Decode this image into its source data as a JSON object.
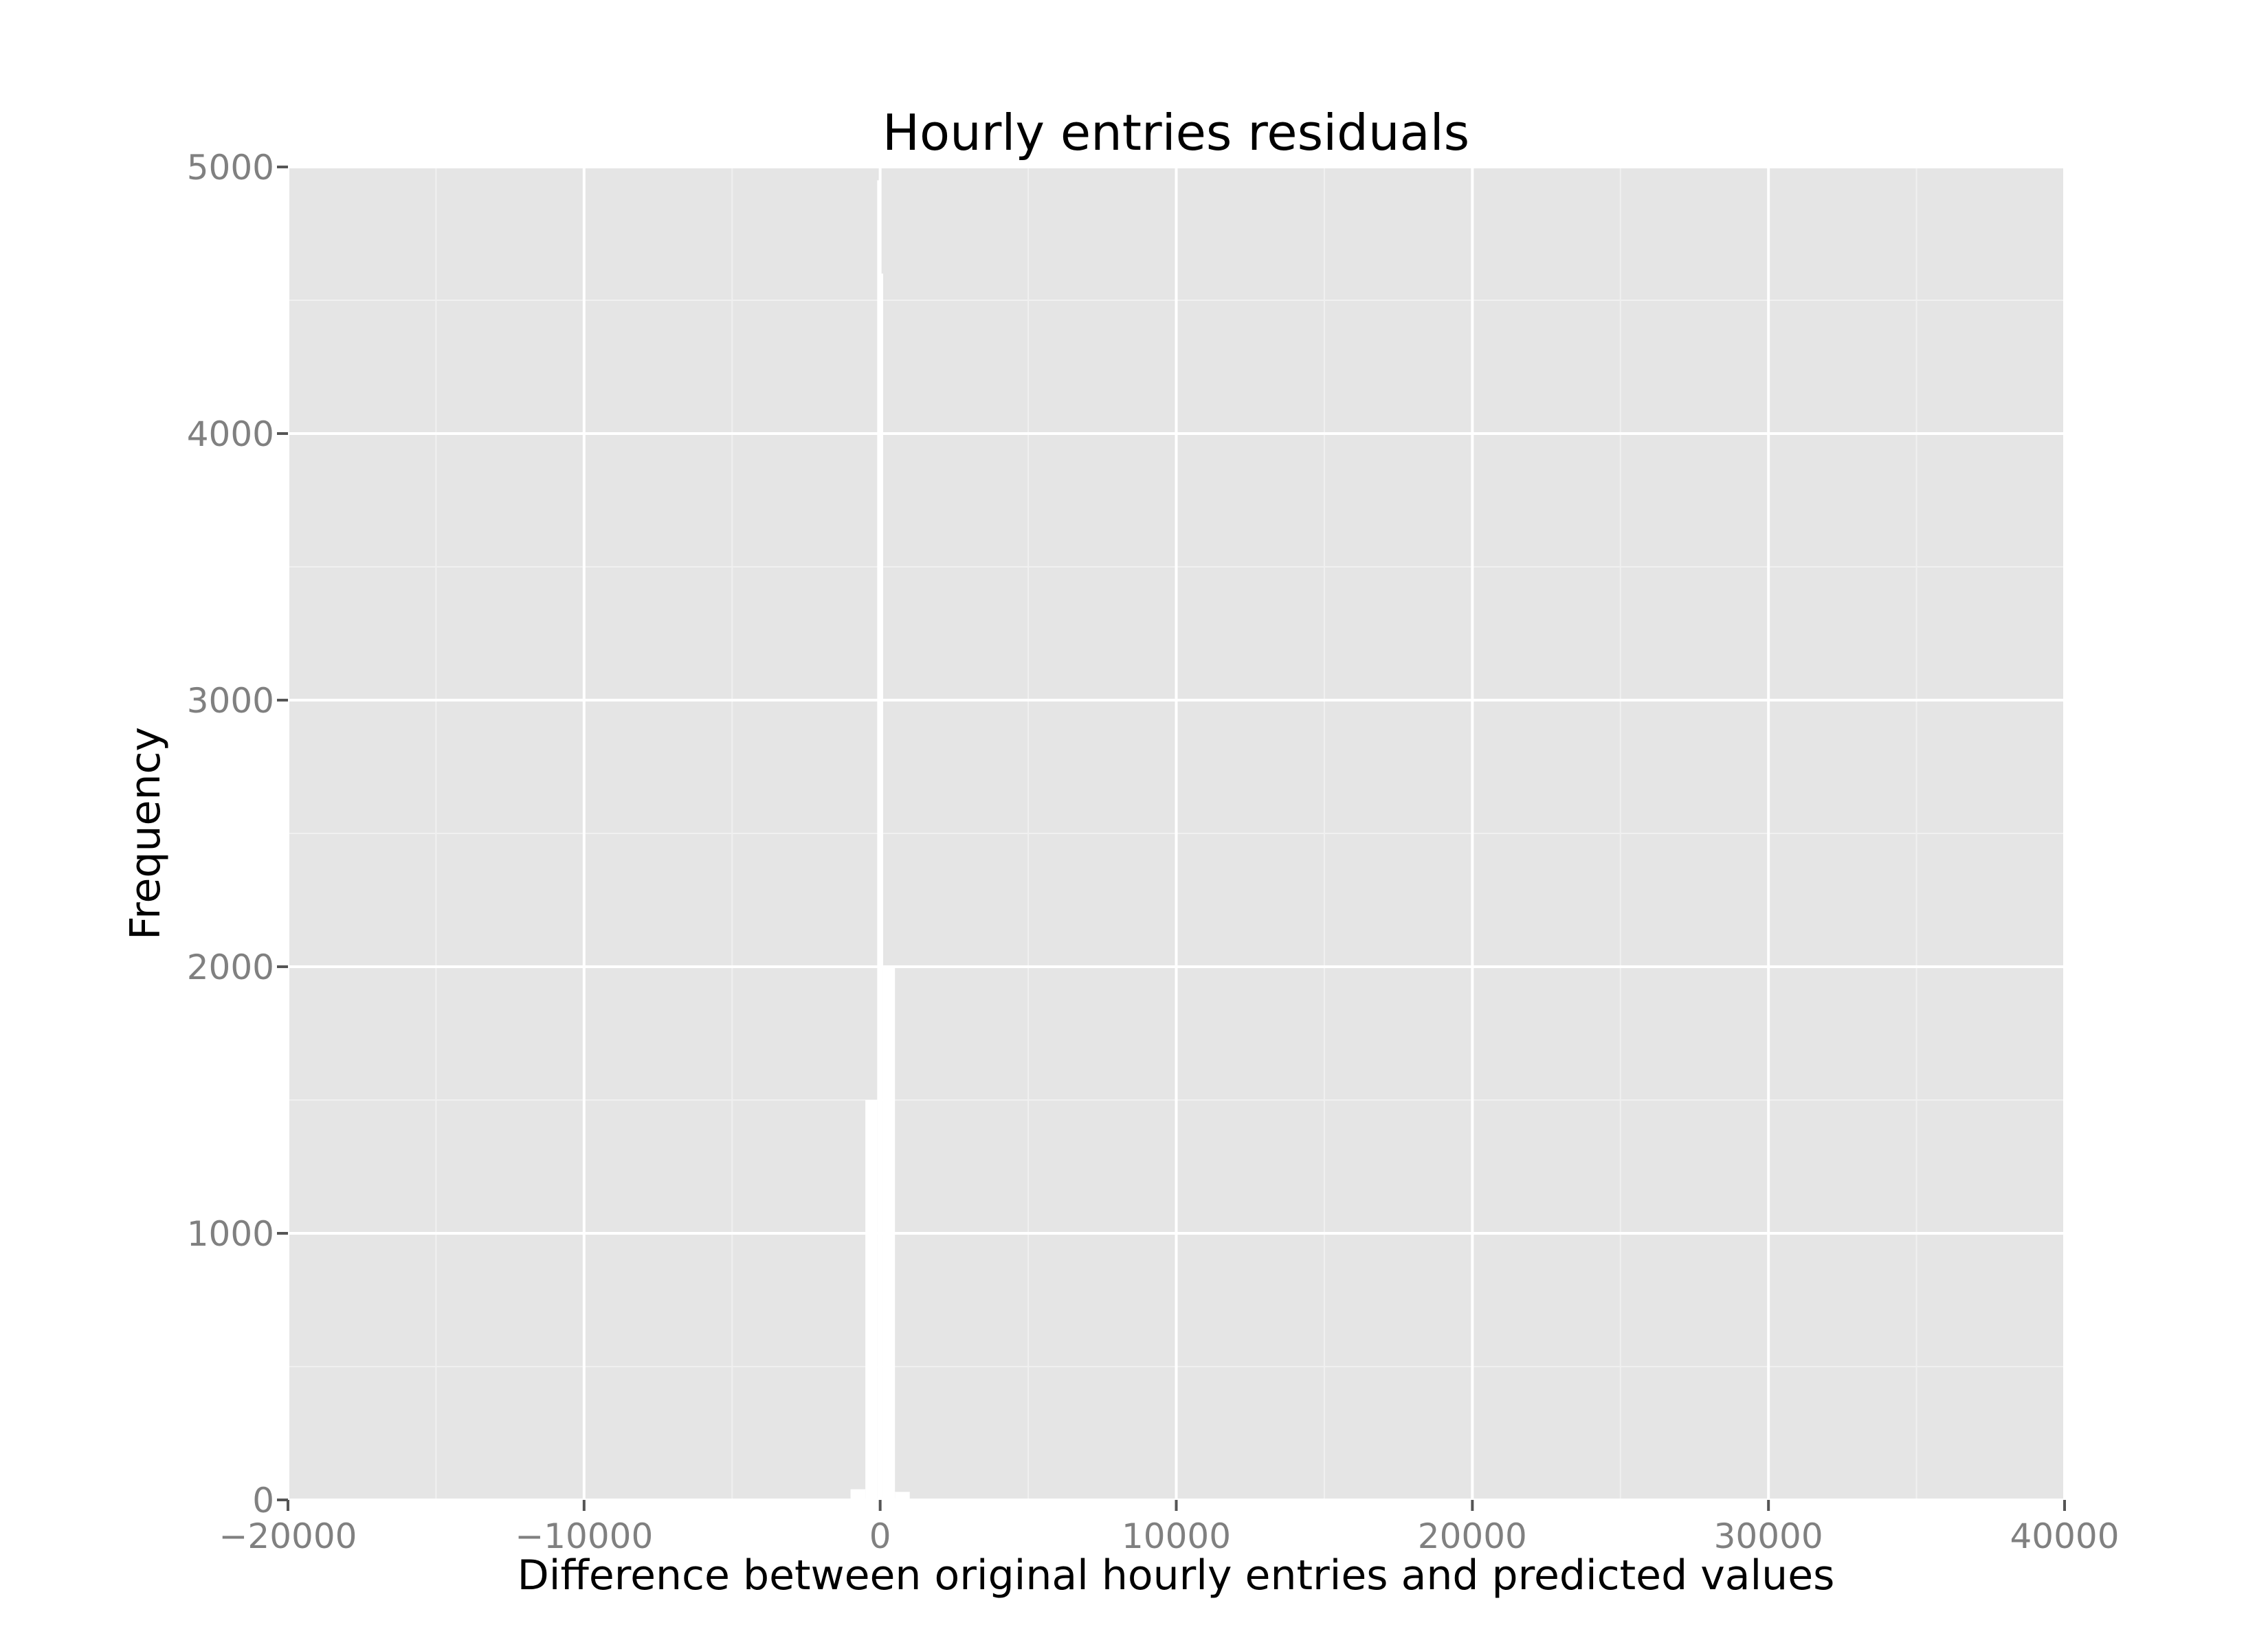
{
  "chart_data": {
    "type": "bar",
    "title": "Hourly entries residuals",
    "xlabel": "Difference between original hourly entries and predicted values",
    "ylabel": "Frequency",
    "xlim": [
      -20000,
      40000
    ],
    "ylim": [
      0,
      5000
    ],
    "x_ticks": [
      -20000,
      -10000,
      0,
      10000,
      20000,
      30000,
      40000
    ],
    "x_tick_labels": [
      "−20000",
      "−10000",
      "0",
      "10000",
      "20000",
      "30000",
      "40000"
    ],
    "y_ticks": [
      0,
      1000,
      2000,
      3000,
      4000,
      5000
    ],
    "y_tick_labels": [
      "0",
      "1000",
      "2000",
      "3000",
      "4000",
      "5000"
    ],
    "grid": true,
    "colors": {
      "panel_background": "#e5e5e5",
      "major_grid": "#ffffff",
      "minor_grid": "#f0f0f0",
      "bars": "#ffffff",
      "tick_marks": "#555555"
    },
    "series": [
      {
        "bins": [
          {
            "x0": -1000,
            "x1": -500,
            "count": 40
          },
          {
            "x0": -500,
            "x1": -100,
            "count": 1500
          },
          {
            "x0": -100,
            "x1": 0,
            "count": 4950
          },
          {
            "x0": 0,
            "x1": 100,
            "count": 4600
          },
          {
            "x0": 100,
            "x1": 500,
            "count": 2000
          },
          {
            "x0": 500,
            "x1": 1000,
            "count": 30
          }
        ]
      }
    ]
  }
}
